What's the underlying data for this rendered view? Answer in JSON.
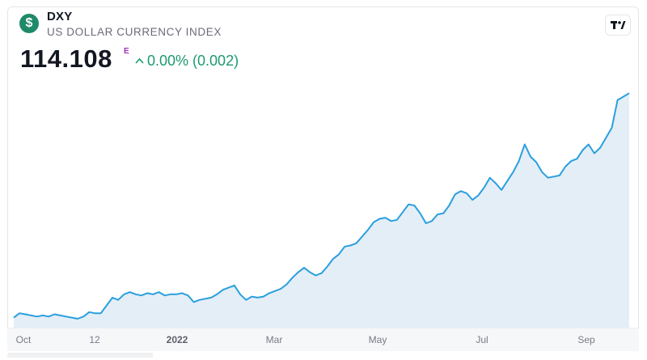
{
  "header": {
    "logo_glyph": "$",
    "symbol": "DXY",
    "name": "US DOLLAR CURRENCY INDEX",
    "price": "114.108",
    "price_flag": "E",
    "change": "0.00% (0.002)",
    "change_icon": "caret-up-icon",
    "tradingview_icon": "tradingview-logo-icon"
  },
  "colors": {
    "line": "#2a9fde",
    "fill": "#e4eef6",
    "positive": "#1b9a72",
    "logo_bg": "#1e8a69",
    "flag": "#a02dbd"
  },
  "chart_data": {
    "type": "area",
    "xlabel": "",
    "ylabel": "",
    "x_ticks": [
      "Oct",
      "12",
      "2022",
      "Mar",
      "May",
      "Jul",
      "Sep"
    ],
    "y": [
      93.9,
      94.3,
      94.2,
      94.1,
      94.0,
      94.1,
      94.0,
      94.2,
      94.1,
      94.0,
      93.9,
      93.8,
      94.0,
      94.4,
      94.3,
      94.3,
      95.0,
      95.7,
      95.5,
      96.0,
      96.2,
      96.0,
      95.9,
      96.1,
      96.0,
      96.2,
      95.9,
      96.0,
      96.0,
      96.1,
      95.9,
      95.3,
      95.5,
      95.6,
      95.7,
      96.0,
      96.4,
      96.6,
      96.8,
      96.0,
      95.5,
      95.8,
      95.7,
      95.8,
      96.1,
      96.3,
      96.5,
      96.9,
      97.5,
      98.0,
      98.4,
      98.0,
      97.7,
      97.9,
      98.5,
      99.2,
      99.6,
      100.3,
      100.4,
      100.6,
      101.2,
      101.8,
      102.5,
      102.8,
      102.9,
      102.6,
      102.7,
      103.4,
      104.1,
      104.0,
      103.3,
      102.4,
      102.6,
      103.2,
      103.3,
      104.0,
      105.0,
      105.3,
      105.1,
      104.5,
      104.9,
      105.6,
      106.5,
      106.0,
      105.4,
      106.2,
      107.0,
      108.0,
      109.5,
      108.4,
      107.9,
      107.0,
      106.5,
      106.6,
      106.7,
      107.5,
      108.0,
      108.2,
      109.0,
      109.5,
      108.7,
      109.2,
      110.1,
      111.0,
      113.5,
      113.8,
      114.108
    ],
    "y_scale_note": "values estimated from line shape; axis unlabeled",
    "ylim": [
      93.0,
      115.0
    ]
  }
}
